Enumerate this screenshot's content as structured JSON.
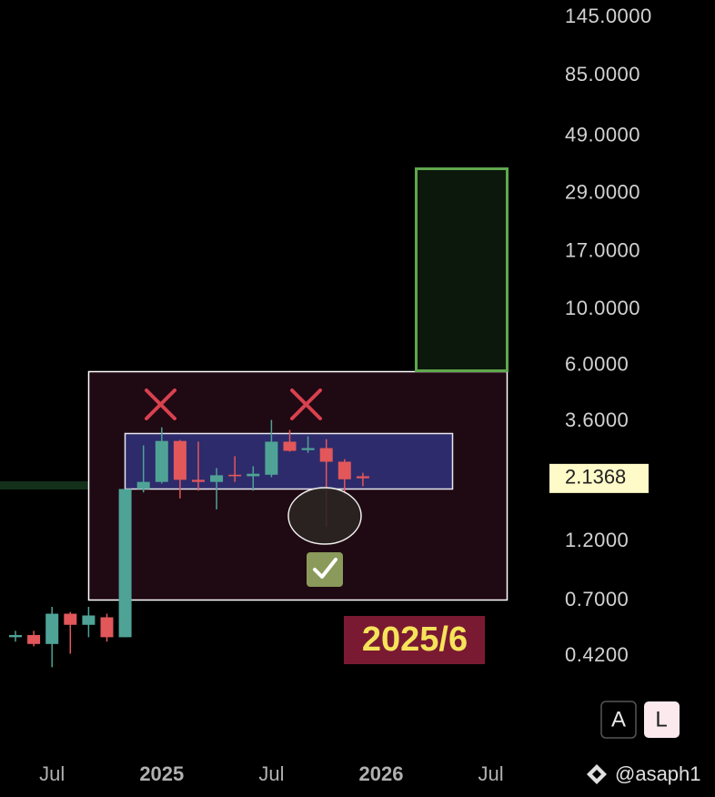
{
  "chart_data": {
    "type": "candlestick",
    "log_scale": true,
    "up_color": "#4fa396",
    "down_color": "#e2575a",
    "categories": [
      null,
      null,
      "Jul",
      null,
      null,
      null,
      null,
      null,
      "2025",
      null,
      null,
      null,
      null,
      null,
      "Jul",
      null,
      null,
      null,
      null,
      null,
      "2026",
      null,
      null,
      null,
      null,
      null,
      "Jul"
    ],
    "open": [
      0.5,
      0.51,
      0.47,
      0.62,
      0.56,
      0.6,
      0.5,
      1.94,
      2.07,
      3.01,
      2.11,
      2.07,
      2.21,
      2.18,
      2.21,
      2.99,
      2.77,
      2.82,
      2.49,
      2.18,
      null,
      null,
      null,
      null,
      null,
      null,
      null
    ],
    "high": [
      0.53,
      0.53,
      0.66,
      0.63,
      0.66,
      0.62,
      1.94,
      2.89,
      3.41,
      3.04,
      2.99,
      2.35,
      2.62,
      2.39,
      3.65,
      3.33,
      3.14,
      3.06,
      2.55,
      2.25,
      null,
      null,
      null,
      null,
      null,
      null,
      null
    ],
    "low": [
      0.48,
      0.46,
      0.38,
      0.43,
      0.5,
      0.48,
      0.5,
      1.88,
      2.04,
      1.78,
      1.91,
      1.61,
      2.07,
      1.91,
      2.16,
      2.73,
      2.7,
      1.37,
      1.83,
      1.99,
      null,
      null,
      null,
      null,
      null,
      null,
      null
    ],
    "close": [
      0.51,
      0.47,
      0.62,
      0.56,
      0.61,
      0.5,
      1.94,
      2.07,
      3.01,
      2.11,
      2.07,
      2.2,
      2.18,
      2.23,
      2.99,
      2.75,
      2.82,
      2.49,
      2.12,
      2.14,
      null,
      null,
      null,
      null,
      null,
      null,
      null
    ],
    "ylim": [
      0.17,
      170
    ],
    "yticks": [
      {
        "value": 145,
        "label": "145.0000"
      },
      {
        "value": 85,
        "label": "85.0000"
      },
      {
        "value": 49,
        "label": "49.0000"
      },
      {
        "value": 29,
        "label": "29.0000"
      },
      {
        "value": 17,
        "label": "17.0000"
      },
      {
        "value": 10,
        "label": "10.0000"
      },
      {
        "value": 6,
        "label": "6.0000"
      },
      {
        "value": 3.6,
        "label": "3.6000"
      },
      {
        "value": 1.2,
        "label": "1.2000"
      },
      {
        "value": 0.7,
        "label": "0.7000"
      },
      {
        "value": 0.42,
        "label": "0.4200"
      }
    ],
    "last_price": 2.1368,
    "annotation": "2025/6"
  },
  "controls": {
    "auto": "A",
    "log": "L"
  },
  "watermark": "@asaph1"
}
